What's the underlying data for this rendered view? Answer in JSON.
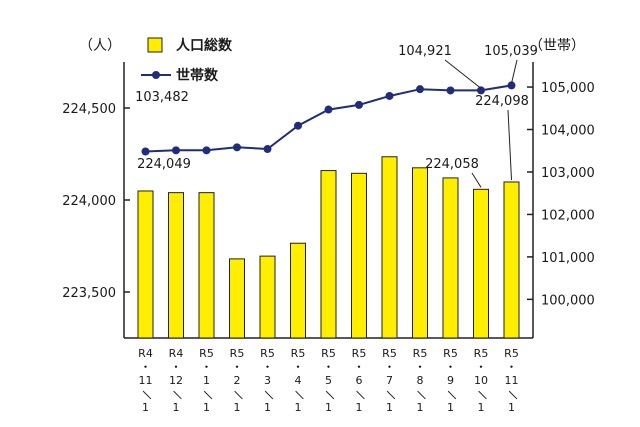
{
  "chart_data": {
    "type": "bar",
    "categories": [
      [
        "R4",
        "・",
        "11",
        "／",
        "1"
      ],
      [
        "R4",
        "・",
        "12",
        "／",
        "1"
      ],
      [
        "R5",
        "・",
        "1",
        "／",
        "1"
      ],
      [
        "R5",
        "・",
        "2",
        "／",
        "1"
      ],
      [
        "R5",
        "・",
        "3",
        "／",
        "1"
      ],
      [
        "R5",
        "・",
        "4",
        "／",
        "1"
      ],
      [
        "R5",
        "・",
        "5",
        "／",
        "1"
      ],
      [
        "R5",
        "・",
        "6",
        "／",
        "1"
      ],
      [
        "R5",
        "・",
        "7",
        "／",
        "1"
      ],
      [
        "R5",
        "・",
        "8",
        "／",
        "1"
      ],
      [
        "R5",
        "・",
        "9",
        "／",
        "1"
      ],
      [
        "R5",
        "・",
        "10",
        "／",
        "1"
      ],
      [
        "R5",
        "・",
        "11",
        "／",
        "1"
      ]
    ],
    "series": [
      {
        "name": "人口総数",
        "type": "bar",
        "axis": "left",
        "color": "#ffee00",
        "values": [
          224049,
          224040,
          224040,
          223680,
          223695,
          223765,
          224160,
          224145,
          224235,
          224175,
          224120,
          224058,
          224098
        ]
      },
      {
        "name": "世帯数",
        "type": "line",
        "axis": "right",
        "color": "#1f2d7a",
        "values": [
          103482,
          103510,
          103510,
          103580,
          103540,
          104090,
          104470,
          104580,
          104790,
          104950,
          104920,
          104921,
          105039
        ]
      }
    ],
    "left_axis": {
      "unit": "（人）",
      "ticks": [
        223500,
        224000,
        224500
      ],
      "tick_labels": [
        "223,500",
        "224,000",
        "224,500"
      ],
      "range": [
        223250,
        224750
      ]
    },
    "right_axis": {
      "unit": "（世帯）",
      "ticks": [
        100000,
        101000,
        102000,
        103000,
        104000,
        105000
      ],
      "tick_labels": [
        "100,000",
        "101,000",
        "102,000",
        "103,000",
        "104,000",
        "105,000"
      ],
      "range": [
        99090,
        105590
      ]
    },
    "annotations": [
      {
        "series": 0,
        "index": 0,
        "text": "224,049"
      },
      {
        "series": 0,
        "index": 11,
        "text": "224,058"
      },
      {
        "series": 0,
        "index": 12,
        "text": "224,098"
      },
      {
        "series": 1,
        "index": 0,
        "text": "103,482"
      },
      {
        "series": 1,
        "index": 11,
        "text": "104,921"
      },
      {
        "series": 1,
        "index": 12,
        "text": "105,039"
      }
    ],
    "legend": {
      "position": "top-left"
    },
    "grid": false
  }
}
